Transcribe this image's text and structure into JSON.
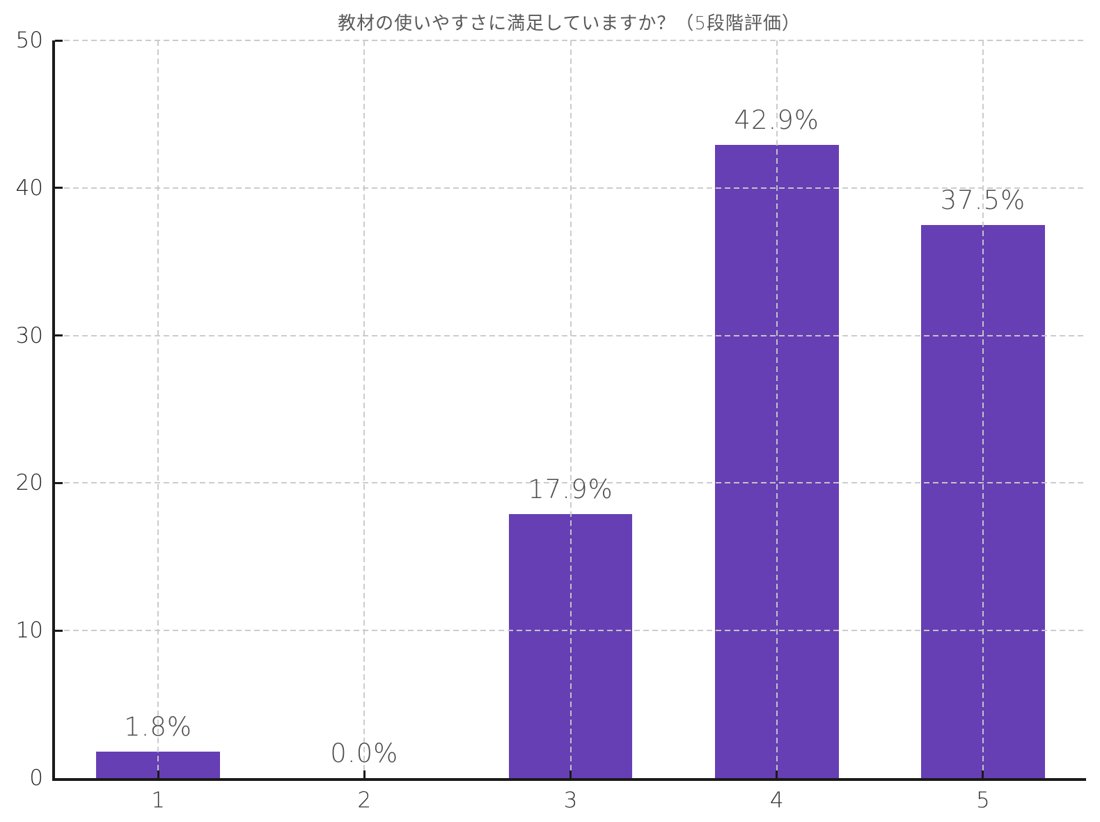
{
  "title": "教材の使いやすさに満足していますか？（5段階評価）",
  "colors": {
    "bar": "#663fb4",
    "grid": "#c9c9c9",
    "axis": "#1a1a1a",
    "title_text": "#595959",
    "tick_label_text": "#2b2b2b",
    "value_label_text": "#4d4d4d",
    "background": "#ffffff"
  },
  "chart_data": {
    "type": "bar",
    "title": "教材の使いやすさに満足していますか？（5段階評価）",
    "categories": [
      "1",
      "2",
      "3",
      "4",
      "5"
    ],
    "values": [
      1.8,
      0.0,
      17.9,
      42.9,
      37.5
    ],
    "value_labels": [
      "1.8%",
      "0.0%",
      "17.9%",
      "42.9%",
      "37.5%"
    ],
    "xlabel": "",
    "ylabel": "",
    "ylim": [
      0,
      50
    ],
    "y_ticks": [
      0,
      10,
      20,
      30,
      40,
      50
    ],
    "bar_width_fraction": 0.6,
    "grid": "dashed gridlines on both axes, drawn above bars",
    "legend": "none"
  }
}
